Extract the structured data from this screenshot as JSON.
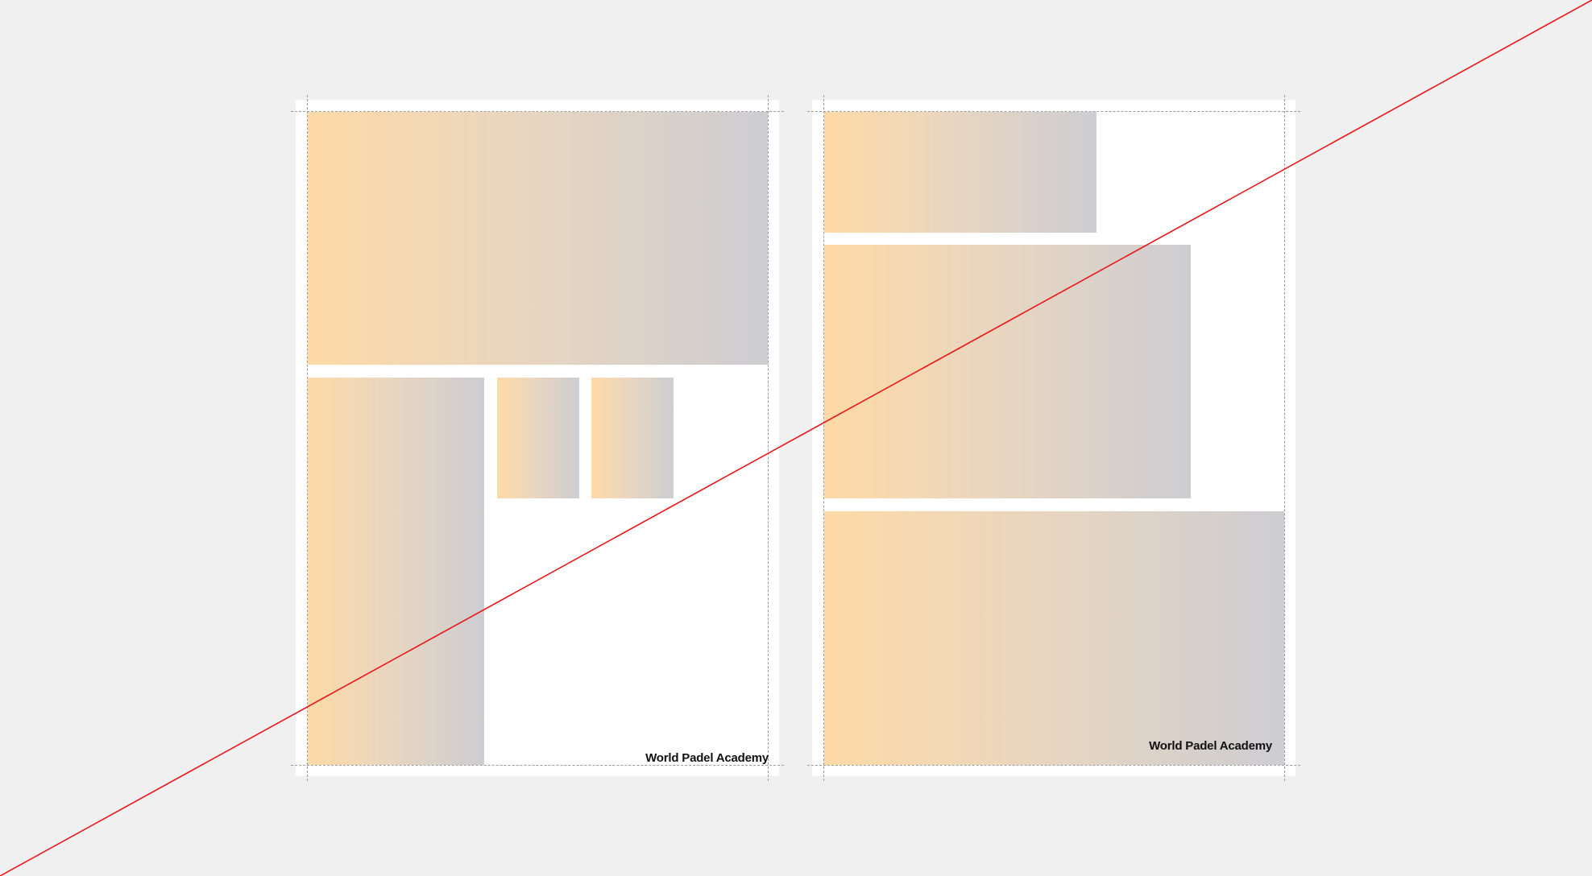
{
  "spread": {
    "left_page": {
      "brand_label": "World Padel Academy",
      "image_placeholders": 4
    },
    "right_page": {
      "brand_label": "World Padel Academy",
      "image_placeholders": 3
    }
  },
  "colors": {
    "canvas_background": "#f0f0f0",
    "page_background": "#ffffff",
    "placeholder_gradient_start": "#ffdaa6",
    "placeholder_gradient_end": "#cdcdd2",
    "guide_line": "#9c9c9c",
    "strike_line": "#e8161b"
  }
}
